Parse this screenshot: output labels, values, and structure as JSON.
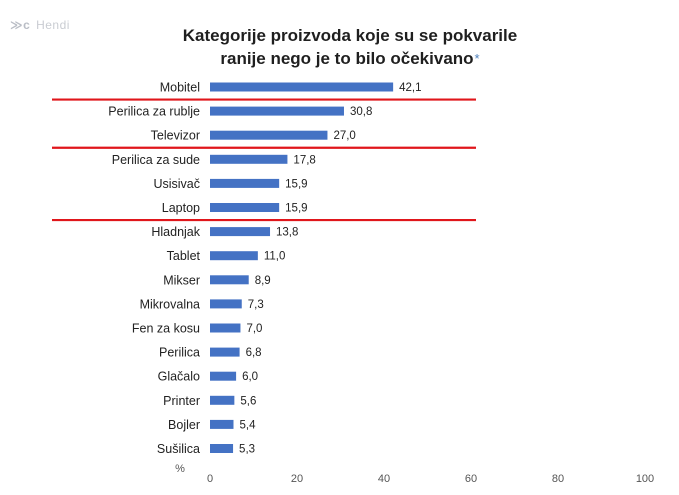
{
  "logo": {
    "mark": "≫c",
    "text": "Hendi"
  },
  "chart_data": {
    "type": "bar",
    "orientation": "horizontal",
    "title_line1": "Kategorije proizvoda koje su se pokvarile",
    "title_line2": "ranije nego je to bilo očekivano",
    "title_marker": "*",
    "unit_label": "%",
    "categories": [
      "Mobitel",
      "Perilica za rublje",
      "Televizor",
      "Perilica za sude",
      "Usisivač",
      "Laptop",
      "Hladnjak",
      "Tablet",
      "Mikser",
      "Mikrovalna",
      "Fen za kosu",
      "Perilica",
      "Glačalo",
      "Printer",
      "Bojler",
      "Sušilica"
    ],
    "values": [
      42.1,
      30.8,
      27.0,
      17.8,
      15.9,
      15.9,
      13.8,
      11.0,
      8.9,
      7.3,
      7.0,
      6.8,
      6.0,
      5.6,
      5.4,
      5.3
    ],
    "value_labels": [
      "42,1",
      "30,8",
      "27,0",
      "17,8",
      "15,9",
      "15,9",
      "13,8",
      "11,0",
      "8,9",
      "7,3",
      "7,0",
      "6,8",
      "6,0",
      "5,6",
      "5,4",
      "5,3"
    ],
    "xlim": [
      0,
      100
    ],
    "xticks": [
      "0",
      "20",
      "40",
      "60",
      "80",
      "100"
    ],
    "grid": false,
    "bar_color": "#4472c4",
    "separator_color": "#e0161b",
    "separators_after": [
      0,
      2,
      5
    ]
  }
}
